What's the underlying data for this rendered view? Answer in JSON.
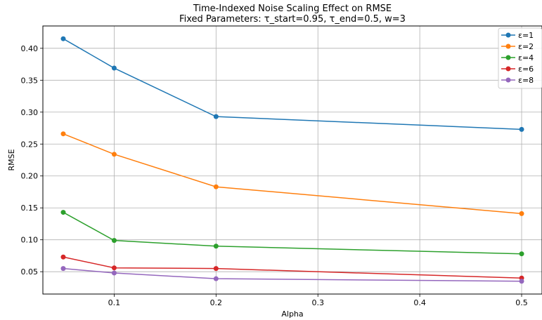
{
  "chart_data": {
    "type": "line",
    "title": "Time-Indexed Noise Scaling Effect on RMSE",
    "subtitle": "Fixed Parameters: τ_start=0.95, τ_end=0.5, w=3",
    "xlabel": "Alpha",
    "ylabel": "RMSE",
    "x": [
      0.05,
      0.1,
      0.2,
      0.5
    ],
    "xlim": [
      0.03,
      0.52
    ],
    "ylim": [
      0.015,
      0.435
    ],
    "xticks": [
      0.1,
      0.2,
      0.3,
      0.4,
      0.5
    ],
    "xtick_labels": [
      "0.1",
      "0.2",
      "0.3",
      "0.4",
      "0.5"
    ],
    "yticks": [
      0.05,
      0.1,
      0.15,
      0.2,
      0.25,
      0.3,
      0.35,
      0.4
    ],
    "ytick_labels": [
      "0.05",
      "0.10",
      "0.15",
      "0.20",
      "0.25",
      "0.30",
      "0.35",
      "0.40"
    ],
    "grid": true,
    "legend_position": "top-right",
    "series": [
      {
        "name": "ε=1",
        "color": "#1f77b4",
        "values": [
          0.415,
          0.369,
          0.293,
          0.273
        ]
      },
      {
        "name": "ε=2",
        "color": "#ff7f0e",
        "values": [
          0.266,
          0.234,
          0.183,
          0.141
        ]
      },
      {
        "name": "ε=4",
        "color": "#2ca02c",
        "values": [
          0.143,
          0.099,
          0.09,
          0.078
        ]
      },
      {
        "name": "ε=6",
        "color": "#d62728",
        "values": [
          0.073,
          0.056,
          0.055,
          0.04
        ]
      },
      {
        "name": "ε=8",
        "color": "#9467bd",
        "values": [
          0.055,
          0.048,
          0.039,
          0.035
        ]
      }
    ]
  }
}
